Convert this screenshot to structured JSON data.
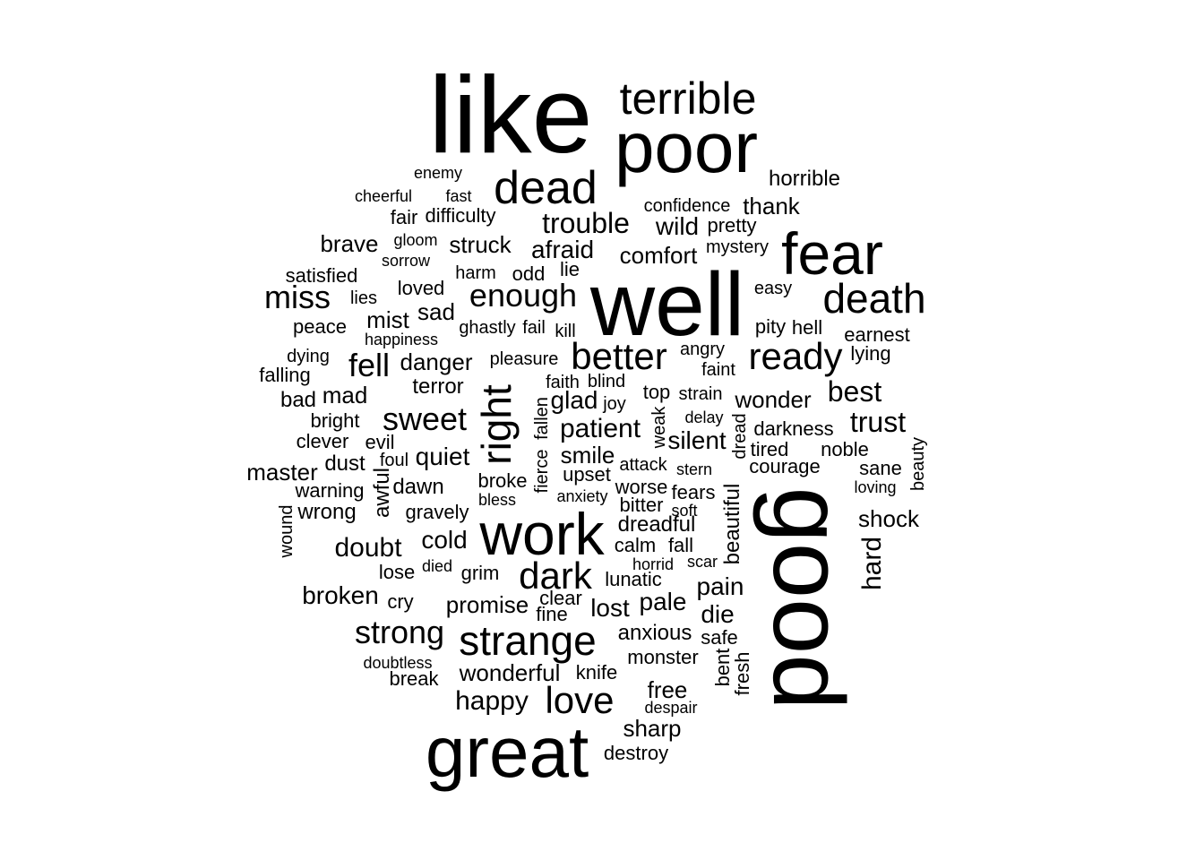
{
  "colors": {
    "background": "#ffffff",
    "text": "#000000"
  },
  "words": {
    "like": "like",
    "poor": "poor",
    "terrible": "terrible",
    "dead": "dead",
    "horrible": "horrible",
    "enemy": "enemy",
    "cheerful": "cheerful",
    "fast": "fast",
    "fair": "fair",
    "difficulty": "difficulty",
    "confidence": "confidence",
    "thank": "thank",
    "trouble": "trouble",
    "wild": "wild",
    "pretty": "pretty",
    "fear": "fear",
    "brave": "brave",
    "gloom": "gloom",
    "struck": "struck",
    "afraid": "afraid",
    "comfort": "comfort",
    "mystery": "mystery",
    "sorrow": "sorrow",
    "satisfied": "satisfied",
    "harm": "harm",
    "odd": "odd",
    "lie": "lie",
    "well": "well",
    "death": "death",
    "miss": "miss",
    "lies": "lies",
    "loved": "loved",
    "enough": "enough",
    "easy": "easy",
    "peace": "peace",
    "mist": "mist",
    "sad": "sad",
    "ghastly": "ghastly",
    "fail": "fail",
    "kill": "kill",
    "pity": "pity",
    "hell": "hell",
    "happiness": "happiness",
    "earnest": "earnest",
    "dying": "dying",
    "falling": "falling",
    "fell": "fell",
    "danger": "danger",
    "pleasure": "pleasure",
    "better": "better",
    "angry": "angry",
    "ready": "ready",
    "lying": "lying",
    "faint": "faint",
    "right": "right",
    "bad": "bad",
    "mad": "mad",
    "terror": "terror",
    "faith": "faith",
    "blind": "blind",
    "glad": "glad",
    "joy": "joy",
    "top": "top",
    "strain": "strain",
    "wonder": "wonder",
    "best": "best",
    "bright": "bright",
    "sweet": "sweet",
    "fallen": "fallen",
    "patient": "patient",
    "weak": "weak",
    "delay": "delay",
    "dread": "dread",
    "darkness": "darkness",
    "trust": "trust",
    "clever": "clever",
    "evil": "evil",
    "silent": "silent",
    "beauty": "beauty",
    "fierce": "fierce",
    "smile": "smile",
    "tired": "tired",
    "noble": "noble",
    "master": "master",
    "dust": "dust",
    "foul": "foul",
    "quiet": "quiet",
    "upset": "upset",
    "attack": "attack",
    "stern": "stern",
    "courage": "courage",
    "sane": "sane",
    "warning": "warning",
    "awful": "awful",
    "broke": "broke",
    "worse": "worse",
    "fears": "fears",
    "loving": "loving",
    "dawn": "dawn",
    "anxiety": "anxiety",
    "bless": "bless",
    "beautiful": "beautiful",
    "wound": "wound",
    "wrong": "wrong",
    "gravely": "gravely",
    "bitter": "bitter",
    "soft": "soft",
    "good": "good",
    "shock": "shock",
    "work": "work",
    "cold": "cold",
    "dreadful": "dreadful",
    "doubt": "doubt",
    "calm": "calm",
    "fall": "fall",
    "hard": "hard",
    "lose": "lose",
    "died": "died",
    "grim": "grim",
    "horrid": "horrid",
    "scar": "scar",
    "dark": "dark",
    "lunatic": "lunatic",
    "broken": "broken",
    "pain": "pain",
    "cry": "cry",
    "clear": "clear",
    "promise": "promise",
    "pale": "pale",
    "lost": "lost",
    "fine": "fine",
    "die": "die",
    "strong": "strong",
    "strange": "strange",
    "anxious": "anxious",
    "safe": "safe",
    "doubtless": "doubtless",
    "monster": "monster",
    "bent": "bent",
    "fresh": "fresh",
    "break": "break",
    "wonderful": "wonderful",
    "knife": "knife",
    "free": "free",
    "happy": "happy",
    "love": "love",
    "despair": "despair",
    "sharp": "sharp",
    "great": "great",
    "destroy": "destroy"
  }
}
